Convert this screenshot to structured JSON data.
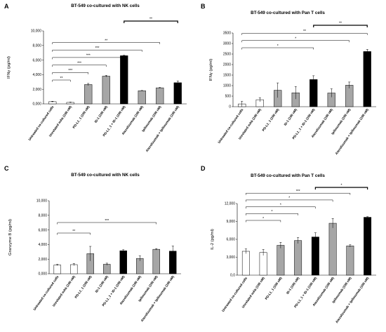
{
  "chart_data": [
    {
      "type": "bar",
      "panel_letter": "A",
      "title": "BT-549 co-cultured with NK cells",
      "ylabel": "IFNγ (pg/ml)",
      "xlabel": "",
      "ylim": [
        0,
        10000
      ],
      "yticks": [
        "0,000",
        "2,000",
        "4,000",
        "6,000",
        "8,000",
        "10,000"
      ],
      "grid": false,
      "categories": [
        "Untreated co-cultured cells",
        "Unrelated mAb (100 nM)",
        "PD-L1_1 (100 nM)",
        "ID-1 (100 nM)",
        "PD-L1_1 + ID-1 (100 nM)",
        "Atezolizumab (100 nM)",
        "Ipilimumab (100 nM)",
        "Atezolizumab + Ipilimumab (100 nM)"
      ],
      "values": [
        300,
        200,
        2650,
        3800,
        6600,
        1800,
        2200,
        2900
      ],
      "errors": [
        60,
        50,
        150,
        120,
        60,
        40,
        60,
        250
      ],
      "bar_styles": [
        "white",
        "white",
        "gray",
        "gray",
        "black",
        "gray",
        "gray",
        "black"
      ],
      "significance": [
        {
          "from": 0,
          "to": 1,
          "label": "**"
        },
        {
          "from": 0,
          "to": 2,
          "label": "***"
        },
        {
          "from": 0,
          "to": 3,
          "label": "***"
        },
        {
          "from": 0,
          "to": 4,
          "label": "***"
        },
        {
          "from": 0,
          "to": 5,
          "label": "***"
        },
        {
          "from": 0,
          "to": 6,
          "label": "**"
        },
        {
          "from": 4,
          "to": 7,
          "label": "**",
          "bold": true
        }
      ]
    },
    {
      "type": "bar",
      "panel_letter": "B",
      "title": "BT-549 co-cultured with Pan T cells",
      "ylabel": "IFNγ (pg/ml)",
      "xlabel": "",
      "ylim": [
        0,
        3500
      ],
      "yticks": [
        "0",
        "500",
        "1000",
        "1500",
        "2000",
        "2500",
        "3000",
        "3500"
      ],
      "grid": false,
      "categories": [
        "Untreated co-cultured cells",
        "Unrelated mAb (100 nM)",
        "PD-L1_1 (100 nM)",
        "ID-1 (100 nM)",
        "PD-L1_1 + ID-1 (100 nM)",
        "Atezolizumab (100 nM)",
        "Ipilimumab (100 nM)",
        "Atezolizumab + Ipilimumab (100 nM)"
      ],
      "values": [
        130,
        330,
        780,
        660,
        1290,
        650,
        1020,
        2620
      ],
      "errors": [
        130,
        100,
        350,
        300,
        180,
        200,
        150,
        100
      ],
      "bar_styles": [
        "white",
        "white",
        "gray",
        "gray",
        "black",
        "gray",
        "gray",
        "black"
      ],
      "significance": [
        {
          "from": 0,
          "to": 4,
          "label": "*"
        },
        {
          "from": 0,
          "to": 6,
          "label": "*"
        },
        {
          "from": 0,
          "to": 7,
          "label": "**"
        },
        {
          "from": 4,
          "to": 7,
          "label": "**",
          "bold": true
        }
      ]
    },
    {
      "type": "bar",
      "panel_letter": "C",
      "title": "BT-549 co-cultured with NK cells",
      "ylabel": "Granzyme B (pg/ml)",
      "xlabel": "",
      "ylim": [
        0,
        10000
      ],
      "yticks": [
        "0,000",
        "2,000",
        "4,000",
        "6,000",
        "8,000",
        "10,000"
      ],
      "grid": false,
      "categories": [
        "Untreated co-cultured cells",
        "Unrelated mAb (100 nM)",
        "PD-L1_1 (100 nM)",
        "ID-1 (100 nM)",
        "PD-L1_1 + ID-1 (100 nM)",
        "Atezolizumab (100 nM)",
        "Ipilimumab (100 nM)",
        "Atezolizumab + Ipilimumab (100 nM)"
      ],
      "values": [
        1200,
        1250,
        2750,
        1300,
        3150,
        2100,
        3350,
        3100
      ],
      "errors": [
        100,
        150,
        1000,
        150,
        150,
        350,
        100,
        700
      ],
      "bar_styles": [
        "white",
        "white",
        "gray",
        "gray",
        "black",
        "gray",
        "gray",
        "black"
      ],
      "significance": [
        {
          "from": 0,
          "to": 2,
          "label": "**"
        },
        {
          "from": 0,
          "to": 6,
          "label": "***"
        }
      ]
    },
    {
      "type": "bar",
      "panel_letter": "D",
      "title": "BT-549 co-cultured with Pan T cells",
      "ylabel": "IL-2 (pg/ml)",
      "xlabel": "",
      "ylim": [
        0,
        12000
      ],
      "yticks": [
        "0,0",
        "3,000",
        "6,000",
        "9,000",
        "12,000"
      ],
      "grid": false,
      "categories": [
        "Untreated co-cultured cells",
        "Unrelated mAb (100 nM)",
        "PD-L1_1 (100 nM)",
        "ID-1 (100 nM)",
        "PD-L1_1 + ID-1 (100 nM)",
        "Atezolizumab (100 nM)",
        "Ipilimumab (100 nM)",
        "Atezolizumab + Ipilimumab (100 nM)"
      ],
      "values": [
        4000,
        3800,
        5000,
        5800,
        6400,
        8700,
        4900,
        9700
      ],
      "errors": [
        400,
        500,
        500,
        500,
        700,
        800,
        200,
        100
      ],
      "bar_styles": [
        "white",
        "white",
        "gray",
        "gray",
        "black",
        "gray",
        "gray",
        "black"
      ],
      "significance": [
        {
          "from": 0,
          "to": 2,
          "label": "*"
        },
        {
          "from": 0,
          "to": 3,
          "label": "*"
        },
        {
          "from": 0,
          "to": 4,
          "label": "*"
        },
        {
          "from": 0,
          "to": 5,
          "label": "*"
        },
        {
          "from": 0,
          "to": 6,
          "label": "***"
        },
        {
          "from": 4,
          "to": 7,
          "label": "*",
          "bold": true
        }
      ]
    }
  ]
}
